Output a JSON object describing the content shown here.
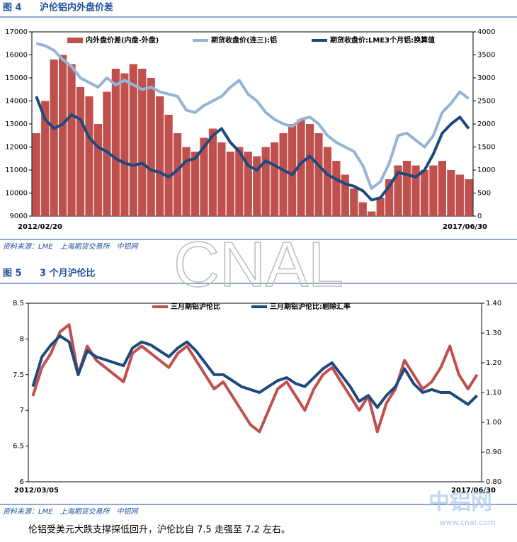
{
  "chart_data": [
    {
      "type": "combo",
      "figure_label": "图 4",
      "title": "沪伦铝内外盘价差",
      "source": "资料来源：LME　上海期货交易所　中铝网",
      "categories": [
        "2012/02/20",
        null,
        null,
        null,
        null,
        null,
        null,
        null,
        null,
        null,
        null,
        null,
        null,
        null,
        null,
        null,
        null,
        null,
        null,
        null,
        null,
        null,
        null,
        null,
        null,
        null,
        null,
        null,
        null,
        null,
        null,
        null,
        null,
        null,
        null,
        null,
        null,
        null,
        null,
        null,
        null,
        null,
        null,
        null,
        null,
        null,
        null,
        null,
        null,
        "2017/06/30"
      ],
      "ylim": [
        9000,
        17000
      ],
      "yticks": [
        9000,
        10000,
        11000,
        12000,
        13000,
        14000,
        15000,
        16000,
        17000
      ],
      "y2lim": [
        0,
        4000
      ],
      "y2ticks": [
        0,
        500,
        1000,
        1500,
        2000,
        2500,
        3000,
        3500,
        4000
      ],
      "series": [
        {
          "name": "内外盘价差(内盘-外盘)",
          "type": "bar",
          "axis": "y2",
          "color": "#c0504d",
          "values": [
            1800,
            2500,
            3400,
            3500,
            3300,
            2800,
            2600,
            2000,
            2700,
            3200,
            3100,
            3300,
            3200,
            3000,
            2600,
            2200,
            1800,
            1500,
            1400,
            1700,
            1900,
            1600,
            1400,
            1500,
            1400,
            1300,
            1500,
            1600,
            1800,
            2000,
            2100,
            2000,
            1800,
            1500,
            1200,
            900,
            600,
            300,
            100,
            400,
            800,
            1100,
            1200,
            1100,
            1000,
            1100,
            1200,
            1000,
            900,
            800
          ]
        },
        {
          "name": "期货收盘价(连三):铝",
          "type": "line",
          "color": "#95b3d7",
          "values": [
            16500,
            16400,
            16200,
            15800,
            15500,
            15000,
            14800,
            14600,
            15000,
            14700,
            14900,
            14700,
            14500,
            14600,
            14400,
            14300,
            14200,
            13600,
            13500,
            13800,
            14000,
            14200,
            14600,
            14900,
            14300,
            14000,
            13500,
            13200,
            13000,
            12900,
            13200,
            13300,
            13000,
            12500,
            12200,
            12000,
            11800,
            11200,
            10200,
            10500,
            11300,
            12500,
            12600,
            12300,
            12000,
            12500,
            13500,
            13900,
            14400,
            14100
          ]
        },
        {
          "name": "期货收盘价:LME3个月铝:换算值",
          "type": "line",
          "color": "#1f497d",
          "values": [
            14200,
            13200,
            12800,
            13000,
            13400,
            13200,
            12400,
            12000,
            11800,
            11500,
            11300,
            11200,
            11300,
            11000,
            10900,
            10700,
            11000,
            11400,
            11500,
            12000,
            12500,
            12800,
            12200,
            11800,
            11200,
            11000,
            11400,
            11200,
            11000,
            10800,
            11300,
            11600,
            11200,
            10800,
            10600,
            10400,
            10300,
            10100,
            9700,
            9800,
            10300,
            10900,
            10800,
            10700,
            11000,
            11700,
            12600,
            13000,
            13300,
            12800
          ]
        }
      ]
    },
    {
      "type": "line",
      "figure_label": "图 5",
      "title": "3 个月沪伦比",
      "source": "资料来源：LME　上海期货交易所　中铝网",
      "categories": [
        "2012/03/05",
        null,
        null,
        null,
        null,
        null,
        null,
        null,
        null,
        null,
        null,
        null,
        null,
        null,
        null,
        null,
        null,
        null,
        null,
        null,
        null,
        null,
        null,
        null,
        null,
        null,
        null,
        null,
        null,
        null,
        null,
        null,
        null,
        null,
        null,
        null,
        null,
        null,
        null,
        null,
        null,
        null,
        null,
        null,
        null,
        null,
        null,
        null,
        null,
        "2017/06/30"
      ],
      "ylim": [
        6,
        8.5
      ],
      "yticks": [
        6,
        6.5,
        7,
        7.5,
        8,
        8.5
      ],
      "y2lim": [
        0.8,
        1.4
      ],
      "y2ticks": [
        {
          "value": 0.8,
          "label": "0.80"
        },
        {
          "value": 0.9,
          "label": "0.90"
        },
        {
          "value": 1.0,
          "label": "1.00"
        },
        {
          "value": 1.1,
          "label": "1.10"
        },
        {
          "value": 1.2,
          "label": "1.20"
        },
        {
          "value": 1.3,
          "label": "1.30"
        },
        {
          "value": 1.4,
          "label": "1.40"
        }
      ],
      "series": [
        {
          "name": "三月期铝沪伦比",
          "type": "line",
          "color": "#c0504d",
          "values": [
            7.2,
            7.6,
            7.8,
            8.1,
            8.2,
            7.5,
            7.9,
            7.7,
            7.6,
            7.5,
            7.4,
            7.8,
            7.9,
            7.8,
            7.7,
            7.6,
            7.8,
            7.9,
            7.7,
            7.5,
            7.3,
            7.4,
            7.2,
            7.0,
            6.8,
            6.7,
            7.0,
            7.3,
            7.4,
            7.2,
            7.0,
            7.3,
            7.5,
            7.6,
            7.4,
            7.2,
            7.0,
            7.2,
            6.7,
            7.1,
            7.3,
            7.7,
            7.5,
            7.3,
            7.4,
            7.6,
            7.9,
            7.5,
            7.3,
            7.5
          ]
        },
        {
          "name": "三月期铝沪伦比:剔除汇率",
          "type": "line",
          "axis": "y2",
          "color": "#1f497d",
          "values": [
            1.12,
            1.22,
            1.26,
            1.29,
            1.27,
            1.16,
            1.24,
            1.22,
            1.21,
            1.2,
            1.19,
            1.25,
            1.27,
            1.26,
            1.24,
            1.22,
            1.25,
            1.27,
            1.24,
            1.2,
            1.16,
            1.16,
            1.14,
            1.12,
            1.11,
            1.1,
            1.12,
            1.14,
            1.15,
            1.13,
            1.12,
            1.15,
            1.18,
            1.2,
            1.16,
            1.12,
            1.07,
            1.09,
            1.05,
            1.09,
            1.12,
            1.18,
            1.13,
            1.1,
            1.11,
            1.1,
            1.1,
            1.08,
            1.06,
            1.09
          ]
        }
      ]
    }
  ],
  "watermark": "CNAL",
  "logo": "中铝网",
  "url": "www.cnal.com",
  "body_text": "伦铝受美元大跌支撑探低回升，沪伦比自 7.5 走强至 7.2 左右。"
}
